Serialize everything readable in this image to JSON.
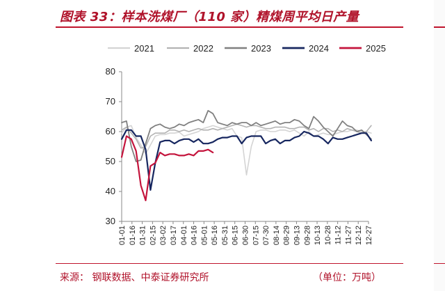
{
  "header": {
    "title": "图表 33：样本洗煤厂（110 家）精煤周平均日产量"
  },
  "footer": {
    "source": "来源：  钢联数据、中泰证券研究所",
    "unit": "（单位：万吨）"
  },
  "colors": {
    "accent": "#c0142c"
  },
  "chart_data": {
    "type": "line",
    "title": "",
    "xlabel": "",
    "ylabel": "",
    "ylim": [
      30,
      80
    ],
    "yticks": [
      30,
      40,
      50,
      60,
      70,
      80
    ],
    "grid": false,
    "legend_position": "top",
    "x_tick_labels": [
      "01-01",
      "01-16",
      "01-31",
      "02-15",
      "03-02",
      "03-17",
      "04-01",
      "04-16",
      "05-01",
      "05-16",
      "05-31",
      "06-15",
      "06-30",
      "07-15",
      "07-30",
      "08-14",
      "08-29",
      "09-13",
      "09-28",
      "10-13",
      "10-28",
      "11-12",
      "11-27",
      "12-12",
      "12-27"
    ],
    "series": [
      {
        "name": "2021",
        "color": "#d4d4d4",
        "width": 1.6,
        "x": [
          "01-01",
          "01-08",
          "01-15",
          "01-22",
          "01-29",
          "02-05",
          "02-12",
          "02-19",
          "02-26",
          "03-05",
          "03-12",
          "03-19",
          "03-26",
          "04-02",
          "04-09",
          "04-16",
          "04-23",
          "04-30",
          "05-07",
          "05-14",
          "05-21",
          "05-28",
          "06-04",
          "06-11",
          "06-18",
          "06-25",
          "07-02",
          "07-09",
          "07-16",
          "07-23",
          "07-30",
          "08-06",
          "08-13",
          "08-20",
          "08-27",
          "09-03",
          "09-10",
          "09-17",
          "09-24",
          "10-01",
          "10-08",
          "10-15",
          "10-22",
          "10-29",
          "11-05",
          "11-12",
          "11-19",
          "11-26",
          "12-03",
          "12-10",
          "12-17",
          "12-24",
          "12-31"
        ],
        "values": [
          59.5,
          61.5,
          62.0,
          58.0,
          55.5,
          52.5,
          55.5,
          58.5,
          59.0,
          59.0,
          59.5,
          59.5,
          59.8,
          58.5,
          59.0,
          59.5,
          60.0,
          61.0,
          61.5,
          62.0,
          61.5,
          61.0,
          60.5,
          61.0,
          58.5,
          58.0,
          45.5,
          55.0,
          60.0,
          60.5,
          60.5,
          60.0,
          60.0,
          60.5,
          60.5,
          60.0,
          60.5,
          59.5,
          58.5,
          60.0,
          58.5,
          59.0,
          59.5,
          59.0,
          59.0,
          59.5,
          60.0,
          60.0,
          60.5,
          60.5,
          60.0,
          60.0,
          59.5
        ]
      },
      {
        "name": "2022",
        "color": "#b3b3b3",
        "width": 1.6,
        "x": [
          "01-01",
          "01-08",
          "01-15",
          "01-22",
          "01-29",
          "02-05",
          "02-12",
          "02-19",
          "02-26",
          "03-05",
          "03-12",
          "03-19",
          "03-26",
          "04-02",
          "04-09",
          "04-16",
          "04-23",
          "04-30",
          "05-07",
          "05-14",
          "05-21",
          "05-28",
          "06-04",
          "06-11",
          "06-18",
          "06-25",
          "07-02",
          "07-09",
          "07-16",
          "07-23",
          "07-30",
          "08-06",
          "08-13",
          "08-20",
          "08-27",
          "09-03",
          "09-10",
          "09-17",
          "09-24",
          "10-01",
          "10-08",
          "10-15",
          "10-22",
          "10-29",
          "11-05",
          "11-12",
          "11-19",
          "11-26",
          "12-03",
          "12-10",
          "12-17",
          "12-24",
          "12-31"
        ],
        "values": [
          60.5,
          61.5,
          59.5,
          57.5,
          54.5,
          55.0,
          58.5,
          59.5,
          59.5,
          59.5,
          60.5,
          60.5,
          60.0,
          60.5,
          60.0,
          60.5,
          61.0,
          60.5,
          60.5,
          61.0,
          60.5,
          61.0,
          61.5,
          62.0,
          62.5,
          62.0,
          61.5,
          62.0,
          62.0,
          61.5,
          61.0,
          61.0,
          61.5,
          61.5,
          61.5,
          61.0,
          61.0,
          61.5,
          61.5,
          60.5,
          61.0,
          60.0,
          61.0,
          61.0,
          60.0,
          60.5,
          60.0,
          61.0,
          60.5,
          60.0,
          59.5,
          60.0,
          62.0
        ]
      },
      {
        "name": "2023",
        "color": "#808080",
        "width": 1.8,
        "x": [
          "01-01",
          "01-08",
          "01-15",
          "01-22",
          "01-29",
          "02-05",
          "02-12",
          "02-19",
          "02-26",
          "03-05",
          "03-12",
          "03-19",
          "03-26",
          "04-02",
          "04-09",
          "04-16",
          "04-23",
          "04-30",
          "05-07",
          "05-14",
          "05-21",
          "05-28",
          "06-04",
          "06-11",
          "06-18",
          "06-25",
          "07-02",
          "07-09",
          "07-16",
          "07-23",
          "07-30",
          "08-06",
          "08-13",
          "08-20",
          "08-27",
          "09-03",
          "09-10",
          "09-17",
          "09-24",
          "10-01",
          "10-08",
          "10-15",
          "10-22",
          "10-29",
          "11-05",
          "11-12",
          "11-19",
          "11-26",
          "12-03",
          "12-10",
          "12-17",
          "12-24",
          "12-31"
        ],
        "values": [
          63.0,
          63.5,
          55.0,
          50.0,
          50.5,
          56.0,
          61.0,
          62.0,
          62.5,
          61.5,
          61.0,
          61.5,
          62.5,
          62.0,
          63.0,
          63.5,
          64.0,
          63.0,
          67.0,
          66.0,
          63.0,
          62.5,
          62.0,
          63.0,
          62.5,
          63.0,
          63.0,
          62.0,
          63.0,
          62.0,
          62.5,
          63.0,
          63.5,
          62.5,
          63.0,
          63.0,
          64.0,
          63.5,
          62.0,
          61.0,
          65.0,
          63.5,
          61.5,
          60.0,
          58.5,
          61.0,
          63.5,
          62.0,
          61.5,
          60.0,
          60.5,
          59.0,
          57.5
        ]
      },
      {
        "name": "2024",
        "color": "#16265f",
        "width": 2.2,
        "x": [
          "01-01",
          "01-08",
          "01-15",
          "01-22",
          "01-29",
          "02-05",
          "02-12",
          "02-19",
          "02-26",
          "03-05",
          "03-12",
          "03-19",
          "03-26",
          "04-02",
          "04-09",
          "04-16",
          "04-23",
          "04-30",
          "05-07",
          "05-14",
          "05-21",
          "05-28",
          "06-04",
          "06-11",
          "06-18",
          "06-25",
          "07-02",
          "07-09",
          "07-16",
          "07-23",
          "07-30",
          "08-06",
          "08-13",
          "08-20",
          "08-27",
          "09-03",
          "09-10",
          "09-17",
          "09-24",
          "10-01",
          "10-08",
          "10-15",
          "10-22",
          "10-29",
          "11-05",
          "11-12",
          "11-19",
          "11-26",
          "12-03",
          "12-10",
          "12-17",
          "12-24",
          "12-31"
        ],
        "values": [
          57.5,
          60.5,
          60.5,
          58.5,
          58.5,
          54.0,
          40.5,
          49.5,
          56.5,
          57.0,
          57.0,
          56.0,
          57.0,
          57.5,
          57.5,
          56.5,
          57.5,
          56.0,
          56.0,
          56.5,
          57.5,
          58.0,
          58.0,
          58.5,
          58.5,
          56.0,
          58.0,
          58.5,
          58.5,
          58.5,
          56.0,
          57.0,
          57.5,
          56.0,
          57.0,
          57.0,
          58.0,
          58.5,
          60.0,
          59.5,
          58.5,
          58.5,
          57.5,
          56.0,
          58.0,
          57.5,
          57.5,
          58.0,
          58.5,
          59.0,
          59.5,
          59.5,
          57.0
        ]
      },
      {
        "name": "2025",
        "color": "#c4143c",
        "width": 2.2,
        "x": [
          "01-01",
          "01-08",
          "01-15",
          "01-22",
          "01-29",
          "02-05",
          "02-12",
          "02-19",
          "02-26",
          "03-05",
          "03-12",
          "03-19",
          "03-26",
          "04-02",
          "04-09",
          "04-16",
          "04-23",
          "04-30",
          "05-07",
          "05-14"
        ],
        "values": [
          51.5,
          58.5,
          57.5,
          53.5,
          42.0,
          37.0,
          48.5,
          49.5,
          53.0,
          52.0,
          52.5,
          52.5,
          52.0,
          52.0,
          52.5,
          52.0,
          53.5,
          53.5,
          54.0,
          53.0
        ]
      }
    ]
  }
}
